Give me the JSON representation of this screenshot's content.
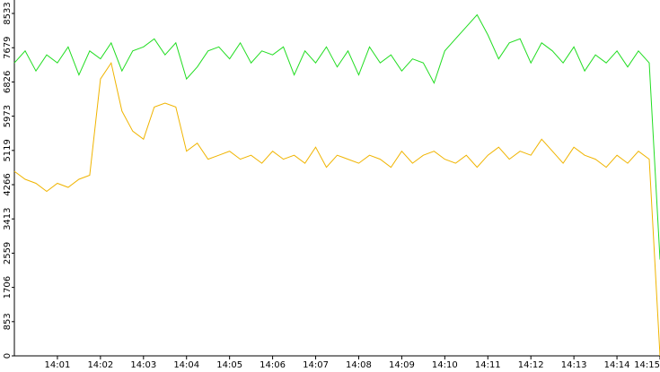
{
  "chart_data": {
    "type": "line",
    "x": [
      0,
      0.25,
      0.5,
      0.75,
      1,
      1.25,
      1.5,
      1.75,
      2,
      2.25,
      2.5,
      2.75,
      3,
      3.25,
      3.5,
      3.75,
      4,
      4.25,
      4.5,
      4.75,
      5,
      5.25,
      5.5,
      5.75,
      6,
      6.25,
      6.5,
      6.75,
      7,
      7.25,
      7.5,
      7.75,
      8,
      8.25,
      8.5,
      8.75,
      9,
      9.25,
      9.5,
      9.75,
      10,
      10.25,
      10.5,
      10.75,
      11,
      11.25,
      11.5,
      11.75,
      12,
      12.25,
      12.5,
      12.75,
      13,
      13.25,
      13.5,
      13.75,
      14,
      14.25,
      14.5,
      14.75,
      15
    ],
    "series": [
      {
        "color": "#22dd22",
        "values": [
          7300,
          7600,
          7100,
          7500,
          7300,
          7700,
          7000,
          7600,
          7400,
          7800,
          7100,
          7600,
          7700,
          7900,
          7500,
          7800,
          6900,
          7200,
          7600,
          7700,
          7400,
          7800,
          7300,
          7600,
          7500,
          7700,
          7000,
          7600,
          7300,
          7700,
          7200,
          7600,
          7000,
          7700,
          7300,
          7500,
          7100,
          7400,
          7300,
          6800,
          7600,
          7900,
          8200,
          8500,
          8000,
          7400,
          7800,
          7900,
          7300,
          7800,
          7600,
          7300,
          7700,
          7100,
          7500,
          7300,
          7600,
          7200,
          7600,
          7300,
          2400
        ]
      },
      {
        "color": "#f0b400",
        "values": [
          4600,
          4400,
          4300,
          4100,
          4300,
          4200,
          4400,
          4500,
          6900,
          7300,
          6100,
          5600,
          5400,
          6200,
          6300,
          6200,
          5100,
          5300,
          4900,
          5000,
          5100,
          4900,
          5000,
          4800,
          5100,
          4900,
          5000,
          4800,
          5200,
          4700,
          5000,
          4900,
          4800,
          5000,
          4900,
          4700,
          5100,
          4800,
          5000,
          5100,
          4900,
          4800,
          5000,
          4700,
          5000,
          5200,
          4900,
          5100,
          5000,
          5400,
          5100,
          4800,
          5200,
          5000,
          4900,
          4700,
          5000,
          4800,
          5100,
          4900,
          0
        ]
      }
    ],
    "xlim": [
      0,
      15
    ],
    "xticks": [
      {
        "value": 1,
        "label": "14:01"
      },
      {
        "value": 2,
        "label": "14:02"
      },
      {
        "value": 3,
        "label": "14:03"
      },
      {
        "value": 4,
        "label": "14:04"
      },
      {
        "value": 5,
        "label": "14:05"
      },
      {
        "value": 6,
        "label": "14:06"
      },
      {
        "value": 7,
        "label": "14:07"
      },
      {
        "value": 8,
        "label": "14:08"
      },
      {
        "value": 9,
        "label": "14:09"
      },
      {
        "value": 10,
        "label": "14:10"
      },
      {
        "value": 11,
        "label": "14:11"
      },
      {
        "value": 12,
        "label": "14:12"
      },
      {
        "value": 13,
        "label": "14:13"
      },
      {
        "value": 14,
        "label": "14:14"
      },
      {
        "value": 15,
        "label": "14:15"
      }
    ],
    "ylim": [
      0,
      8533
    ],
    "yticks": [
      0,
      853,
      1706,
      2559,
      3413,
      4266,
      5119,
      5973,
      6826,
      7679,
      8533
    ]
  }
}
